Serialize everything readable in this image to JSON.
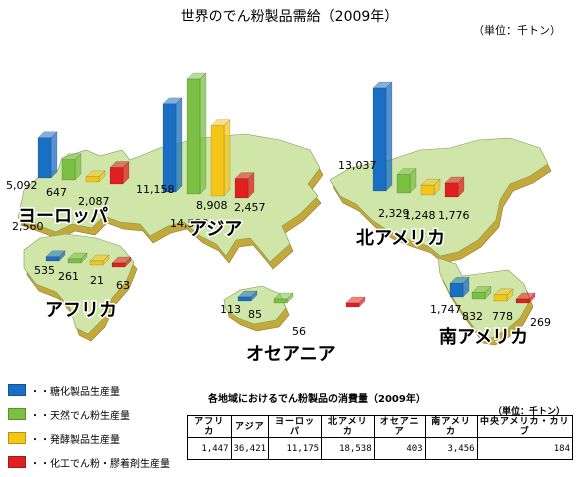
{
  "title": "世界のでん粉製品需給（2009年）",
  "unit_top": "（単位：千トン）",
  "colors": {
    "sugar": "#1a6fc4",
    "natural": "#7ac043",
    "fermented": "#f5c518",
    "chemical": "#e02020",
    "land": "#cfe6a8",
    "land_side": "#c4a93a"
  },
  "chart_data": {
    "type": "bar",
    "title": "世界のでん粉製品需給（2009年）",
    "unit": "（単位：千トン）",
    "series": [
      {
        "name": "糖化製品生産量",
        "color": "#1a6fc4"
      },
      {
        "name": "天然でん粉生産量",
        "color": "#7ac043"
      },
      {
        "name": "発酵製品生産量",
        "color": "#f5c518"
      },
      {
        "name": "化工でん粉・膠着剤生産量",
        "color": "#e02020"
      }
    ],
    "regions": [
      {
        "name": "ヨーロッパ",
        "values": [
          5092,
          2560,
          647,
          2087
        ],
        "labels": [
          "5,092",
          "2,560",
          "647",
          "2,087"
        ]
      },
      {
        "name": "アジア",
        "values": [
          11158,
          14558,
          8908,
          2457
        ],
        "labels": [
          "11,158",
          "14,558",
          "8,908",
          "2,457"
        ]
      },
      {
        "name": "北アメリカ",
        "values": [
          13037,
          2329,
          1248,
          1776
        ],
        "labels": [
          "13,037",
          "2,329",
          "1,248",
          "1,776"
        ]
      },
      {
        "name": "アフリカ",
        "values": [
          535,
          261,
          21,
          63
        ],
        "labels": [
          "535",
          "261",
          "21",
          "63"
        ]
      },
      {
        "name": "オセアニア",
        "values": [
          113,
          85,
          null,
          56
        ],
        "labels": [
          "113",
          "85",
          "",
          "56"
        ]
      },
      {
        "name": "南アメリカ",
        "values": [
          1747,
          832,
          778,
          269
        ],
        "labels": [
          "1,747",
          "832",
          "778",
          "269"
        ]
      }
    ],
    "table": {
      "title": "各地域におけるでん粉製品の消費量（2009年）",
      "unit": "（単位：千トン）",
      "headers": [
        "アフリカ",
        "アジア",
        "ヨーロッパ",
        "北アメリカ",
        "オセアニア",
        "南アメリカ",
        "中央アメリカ・カリブ"
      ],
      "values": [
        "1,447",
        "36,421",
        "11,175",
        "18,538",
        "403",
        "3,456",
        "184"
      ]
    }
  },
  "legend": [
    {
      "label": "・・糖化製品生産量",
      "color": "#1a6fc4"
    },
    {
      "label": "・・天然でん粉生産量",
      "color": "#7ac043"
    },
    {
      "label": "・・発酵製品生産量",
      "color": "#f5c518"
    },
    {
      "label": "・・化工でん粉・膠着剤生産量",
      "color": "#e02020"
    }
  ]
}
